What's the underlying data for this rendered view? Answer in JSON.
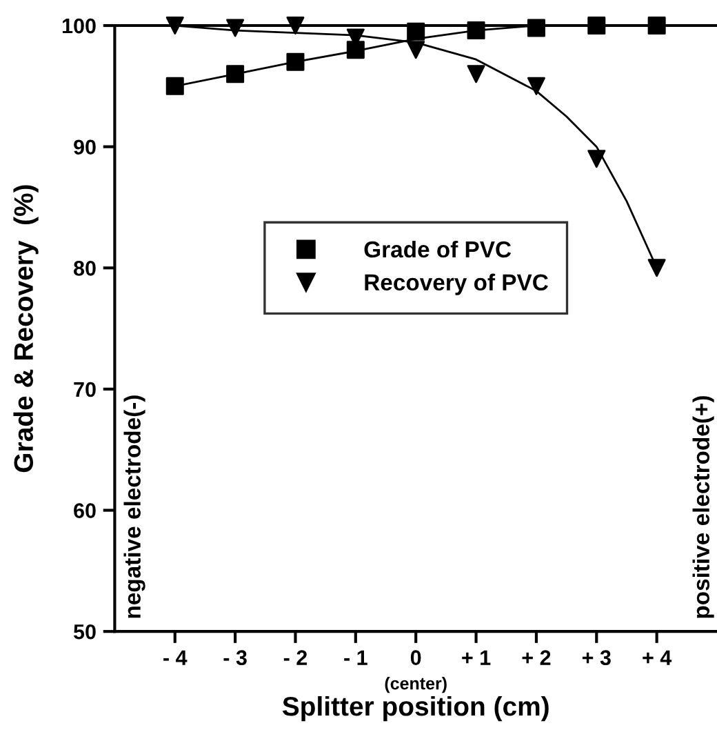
{
  "chart_data": {
    "type": "scatter",
    "xlabel": "Splitter position (cm)",
    "ylabel": "Grade & Recovery  (%)",
    "xlim": [
      -5,
      5
    ],
    "ylim": [
      50,
      100
    ],
    "xticks": [
      {
        "value": -4,
        "label": "- 4"
      },
      {
        "value": -3,
        "label": "- 3"
      },
      {
        "value": -2,
        "label": "- 2"
      },
      {
        "value": -1,
        "label": "- 1"
      },
      0,
      {
        "value": 1,
        "label": "+ 1"
      },
      {
        "value": 2,
        "label": "+ 2"
      },
      {
        "value": 3,
        "label": "+ 3"
      },
      {
        "value": 4,
        "label": "+ 4"
      }
    ],
    "yticks": [
      50,
      60,
      70,
      80,
      90,
      100
    ],
    "grid": false,
    "legend": "center",
    "annotations": [
      "negative electrode(-)",
      "positive electrode(+)",
      "(center)"
    ],
    "series": [
      {
        "name": "Grade of PVC",
        "color": "#000000",
        "marker": "square",
        "x": [
          -4,
          -3,
          -2,
          -1,
          0,
          1,
          2,
          3,
          4
        ],
        "values": [
          95,
          96,
          97,
          98,
          99.5,
          99.6,
          99.8,
          100,
          100
        ]
      },
      {
        "name": "Recovery of PVC",
        "color": "#000000",
        "marker": "triangle",
        "x": [
          -4,
          -3,
          -2,
          -1,
          0,
          1,
          2,
          3,
          4
        ],
        "values": [
          100,
          99.8,
          100,
          99,
          98,
          96,
          95,
          89,
          80
        ]
      },
      {
        "type": "line",
        "color": "#000000",
        "marker": "none",
        "x": [
          -4,
          -3,
          -2,
          -1,
          0,
          1,
          2
        ],
        "values": [
          95,
          96,
          97,
          97.9,
          98.9,
          99.6,
          100
        ]
      },
      {
        "type": "line",
        "color": "#000000",
        "marker": "none",
        "x": [
          -4,
          -3.5,
          -3,
          -2,
          -1,
          0,
          1,
          2,
          2.5,
          3,
          3.5,
          4
        ],
        "values": [
          100,
          99.8,
          99.6,
          99.4,
          99.2,
          98.6,
          97.2,
          94.6,
          92.5,
          90,
          85.5,
          80
        ]
      }
    ]
  }
}
